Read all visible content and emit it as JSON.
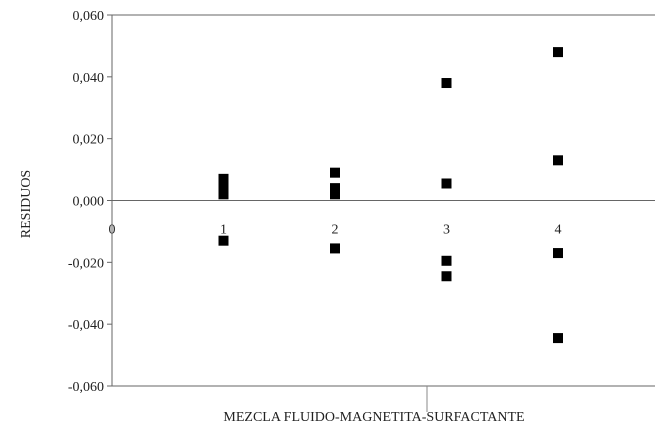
{
  "chart_data": {
    "type": "scatter",
    "title": "",
    "xlabel": "MEZCLA FLUIDO-MAGNETITA-SURFACTANTE",
    "ylabel": "RESIDUOS",
    "xlim": [
      0,
      5
    ],
    "ylim": [
      -0.06,
      0.06
    ],
    "y_ticks": [
      "0,060",
      "0,040",
      "0,020",
      "0,000",
      "-0,020",
      "-0,040",
      "-0,060"
    ],
    "x_ticks": [
      "0",
      "1",
      "2",
      "3",
      "4"
    ],
    "grid": false,
    "marker": "square",
    "marker_color": "#000000",
    "points": [
      {
        "x": 1,
        "y": 0.007
      },
      {
        "x": 1,
        "y": 0.004
      },
      {
        "x": 1,
        "y": 0.003
      },
      {
        "x": 1,
        "y": 0.002
      },
      {
        "x": 1,
        "y": -0.013
      },
      {
        "x": 2,
        "y": 0.009
      },
      {
        "x": 2,
        "y": 0.004
      },
      {
        "x": 2,
        "y": 0.003
      },
      {
        "x": 2,
        "y": 0.002
      },
      {
        "x": 2,
        "y": -0.0155
      },
      {
        "x": 3,
        "y": 0.038
      },
      {
        "x": 3,
        "y": 0.0055
      },
      {
        "x": 3,
        "y": -0.0195
      },
      {
        "x": 3,
        "y": -0.0245
      },
      {
        "x": 4,
        "y": 0.048
      },
      {
        "x": 4,
        "y": 0.013
      },
      {
        "x": 4,
        "y": -0.017
      },
      {
        "x": 4,
        "y": -0.0445
      }
    ]
  }
}
